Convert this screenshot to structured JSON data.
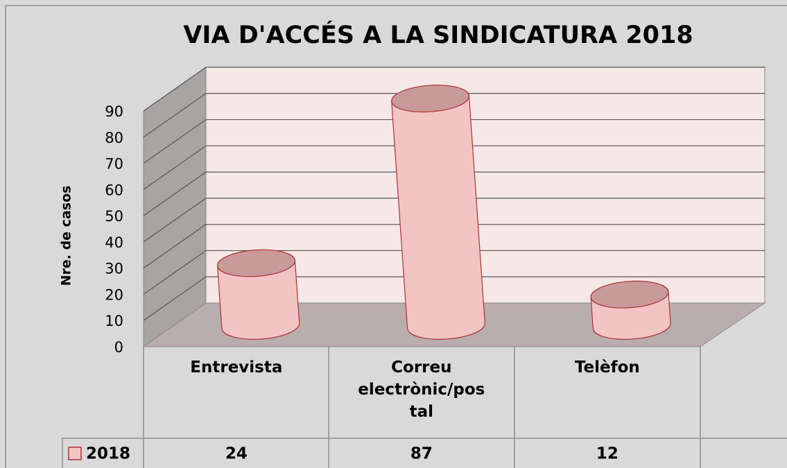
{
  "chart_data": {
    "type": "bar3d_cylinder",
    "title": "VIA D'ACCÉS A LA SINDICATURA 2018",
    "ylabel": "Nre. de casos",
    "categories": [
      "Entrevista",
      "Correu electrònic/postal",
      "Telèfon"
    ],
    "series": [
      {
        "name": "2018",
        "color": "#f2c4c4",
        "values": [
          24,
          87,
          12
        ]
      }
    ],
    "ylim": [
      0,
      90
    ],
    "yticks": [
      0,
      10,
      20,
      30,
      40,
      50,
      60,
      70,
      80,
      90
    ],
    "grid": true,
    "data_table": true
  }
}
